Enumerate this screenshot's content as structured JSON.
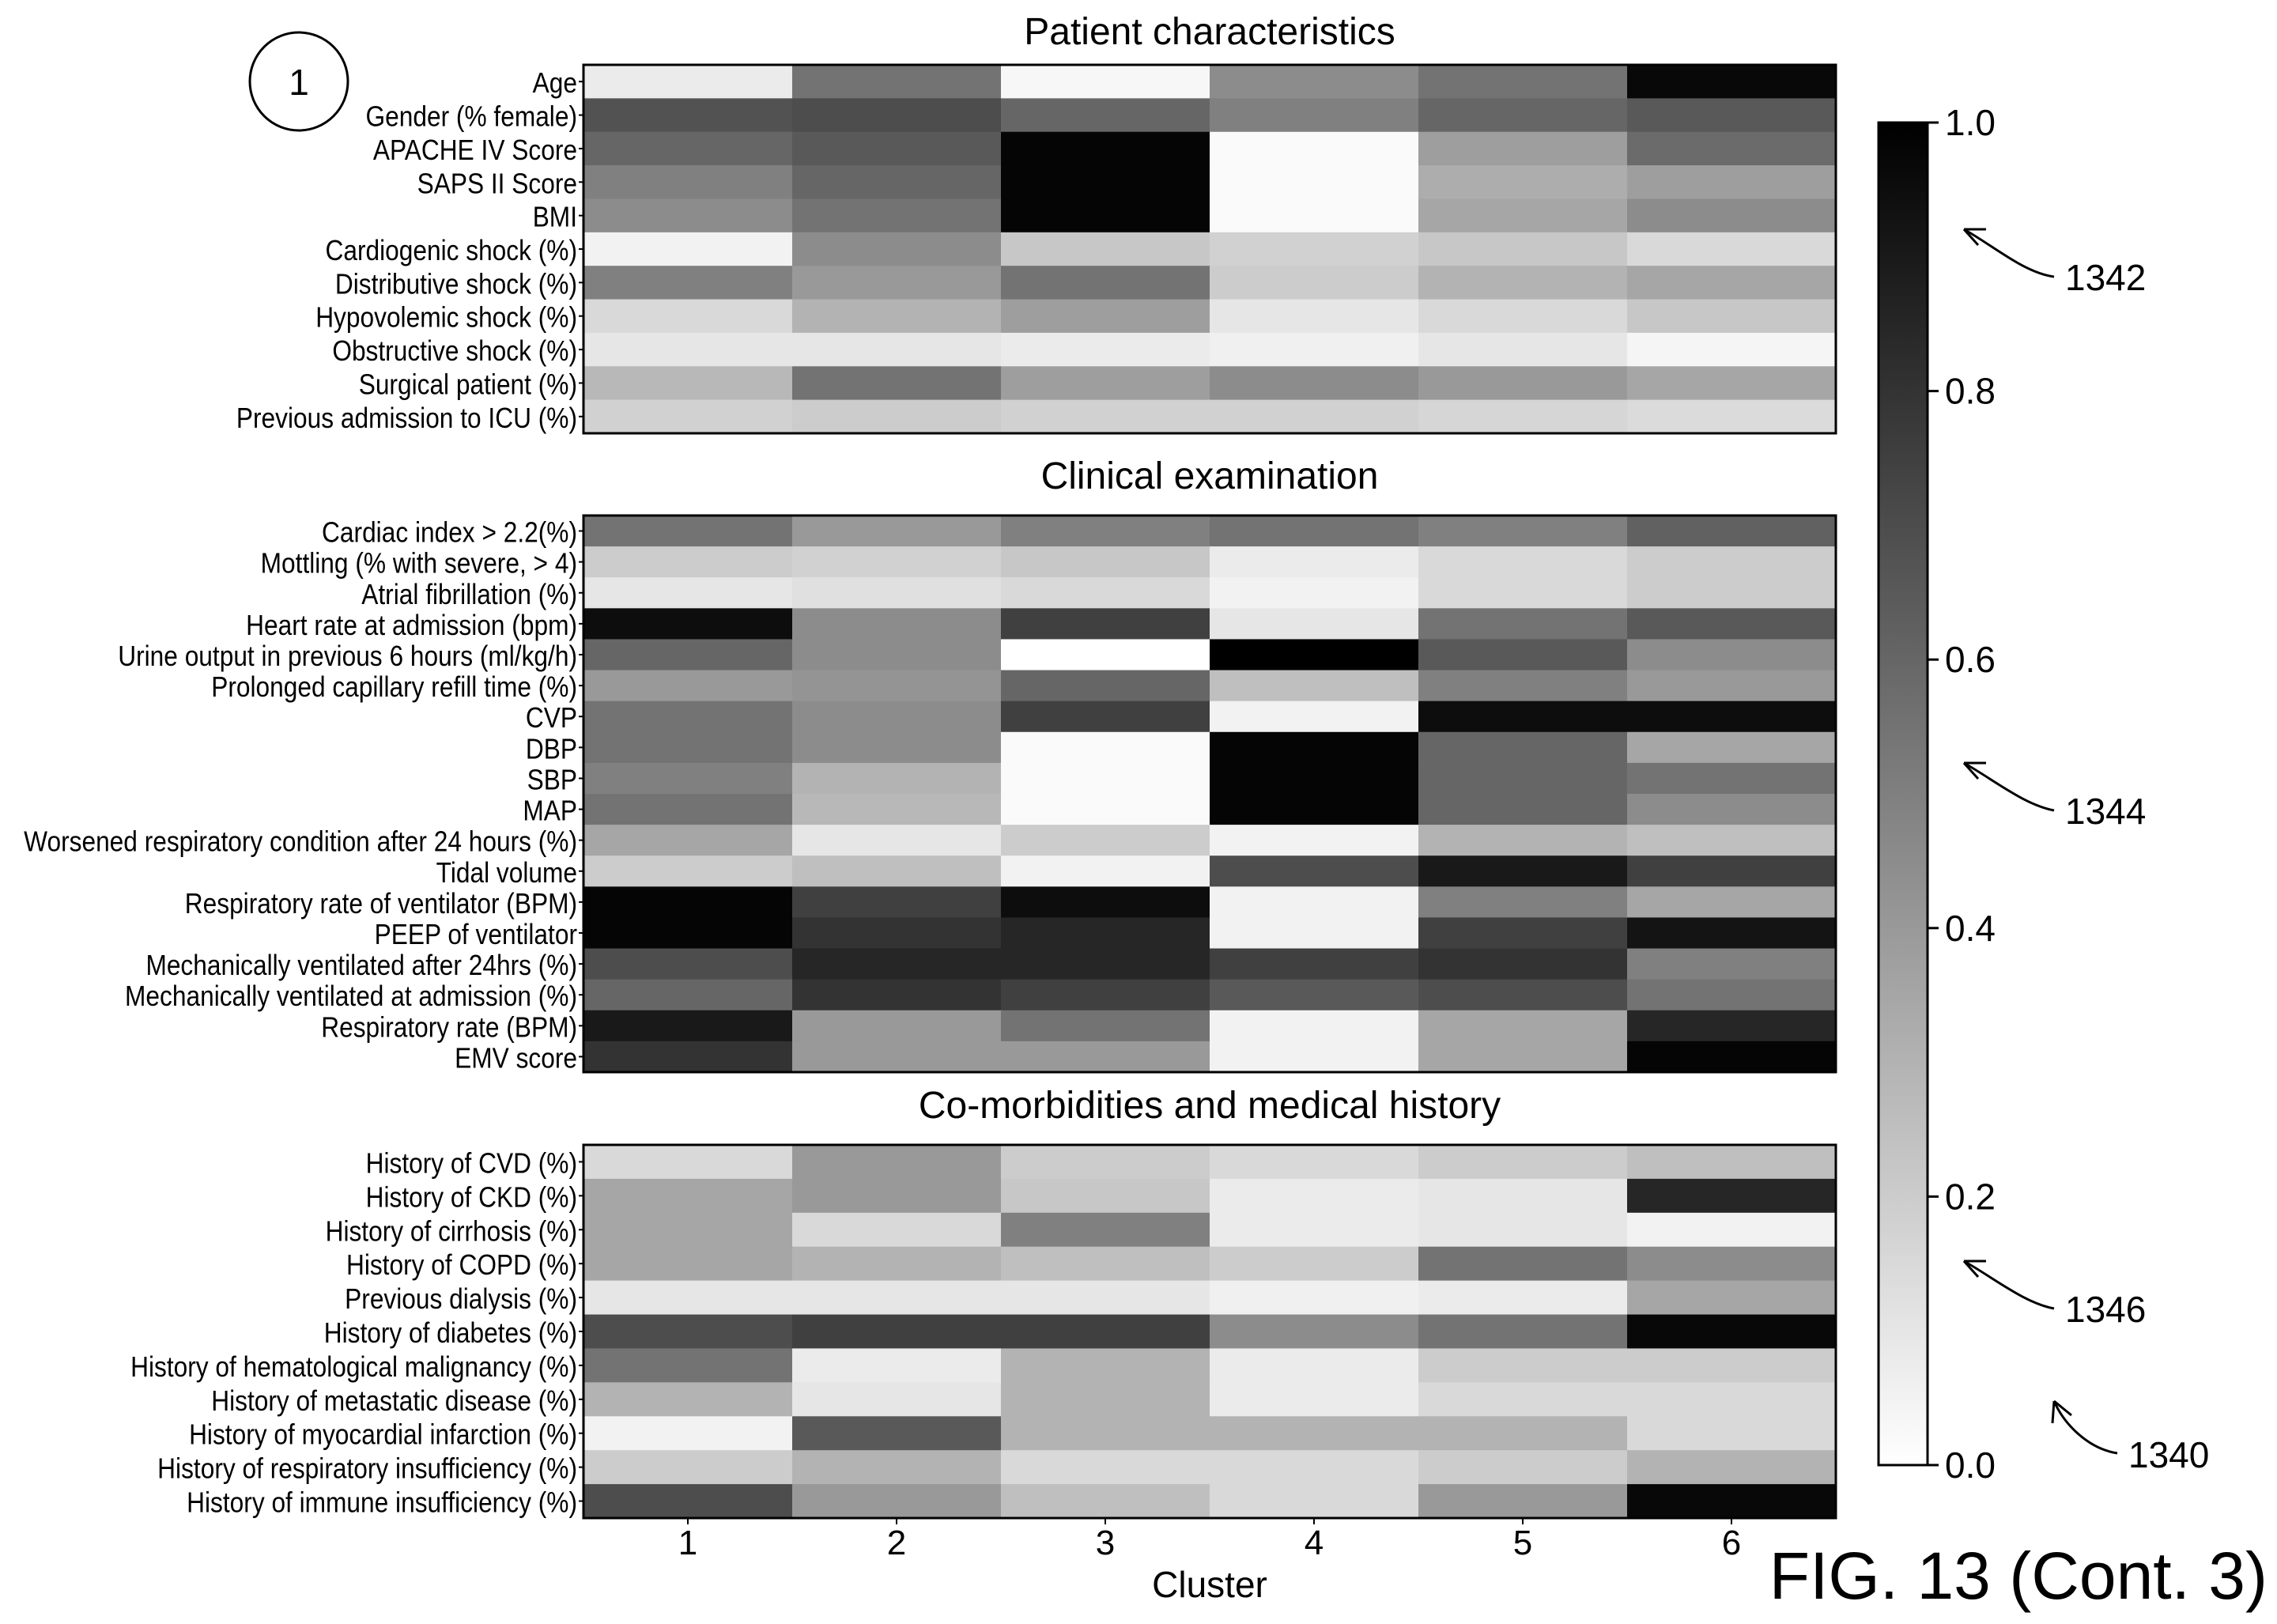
{
  "chart_data": {
    "type": "heatmap",
    "xlabel": "Cluster",
    "categories": [
      "1",
      "2",
      "3",
      "4",
      "5",
      "6"
    ],
    "colorbar": {
      "range": [
        0.0,
        1.0
      ],
      "ticks": [
        "0.0",
        "0.2",
        "0.4",
        "0.6",
        "0.8",
        "1.0"
      ],
      "colormap": [
        "#ffffff",
        "#000000"
      ]
    },
    "panels": [
      {
        "title": "Patient characteristics",
        "rows": [
          {
            "label": "Age",
            "values": [
              0.08,
              0.55,
              0.03,
              0.45,
              0.55,
              0.97
            ]
          },
          {
            "label": "Gender (% female)",
            "values": [
              0.68,
              0.7,
              0.6,
              0.5,
              0.6,
              0.65
            ]
          },
          {
            "label": "APACHE IV Score",
            "values": [
              0.6,
              0.65,
              0.98,
              0.02,
              0.38,
              0.58
            ]
          },
          {
            "label": "SAPS II Score",
            "values": [
              0.5,
              0.6,
              0.98,
              0.02,
              0.32,
              0.38
            ]
          },
          {
            "label": "BMI",
            "values": [
              0.45,
              0.55,
              0.98,
              0.02,
              0.35,
              0.45
            ]
          },
          {
            "label": "Cardiogenic shock (%)",
            "values": [
              0.05,
              0.45,
              0.22,
              0.18,
              0.22,
              0.15
            ]
          },
          {
            "label": "Distributive shock (%)",
            "values": [
              0.5,
              0.4,
              0.55,
              0.2,
              0.3,
              0.35
            ]
          },
          {
            "label": "Hypovolemic shock (%)",
            "values": [
              0.15,
              0.3,
              0.38,
              0.1,
              0.15,
              0.22
            ]
          },
          {
            "label": "Obstructive shock (%)",
            "values": [
              0.1,
              0.1,
              0.08,
              0.06,
              0.1,
              0.04
            ]
          },
          {
            "label": "Surgical patient (%)",
            "values": [
              0.28,
              0.55,
              0.38,
              0.45,
              0.4,
              0.35
            ]
          },
          {
            "label": "Previous admission to ICU (%)",
            "values": [
              0.18,
              0.2,
              0.18,
              0.18,
              0.16,
              0.14
            ]
          }
        ]
      },
      {
        "title": "Clinical examination",
        "rows": [
          {
            "label": "Cardiac index > 2.2(%)",
            "values": [
              0.55,
              0.4,
              0.5,
              0.55,
              0.5,
              0.62
            ]
          },
          {
            "label": "Mottling (% with severe, > 4)",
            "values": [
              0.2,
              0.18,
              0.22,
              0.08,
              0.15,
              0.2
            ]
          },
          {
            "label": "Atrial fibrillation (%)",
            "values": [
              0.1,
              0.12,
              0.15,
              0.05,
              0.15,
              0.2
            ]
          },
          {
            "label": "Heart rate at admission (bpm)",
            "values": [
              0.95,
              0.45,
              0.75,
              0.1,
              0.55,
              0.65
            ]
          },
          {
            "label": "Urine output in previous 6 hours (ml/kg/h)",
            "values": [
              0.6,
              0.45,
              0.0,
              1.0,
              0.65,
              0.45
            ]
          },
          {
            "label": "Prolonged capillary refill time (%)",
            "values": [
              0.4,
              0.42,
              0.6,
              0.25,
              0.5,
              0.4
            ]
          },
          {
            "label": "CVP",
            "values": [
              0.55,
              0.45,
              0.75,
              0.05,
              0.95,
              0.95
            ]
          },
          {
            "label": "DBP",
            "values": [
              0.55,
              0.45,
              0.02,
              0.98,
              0.6,
              0.35
            ]
          },
          {
            "label": "SBP",
            "values": [
              0.5,
              0.3,
              0.02,
              0.98,
              0.6,
              0.55
            ]
          },
          {
            "label": "MAP",
            "values": [
              0.55,
              0.28,
              0.02,
              0.98,
              0.6,
              0.45
            ]
          },
          {
            "label": "Worsened respiratory condition after 24 hours (%)",
            "values": [
              0.35,
              0.1,
              0.2,
              0.05,
              0.3,
              0.25
            ]
          },
          {
            "label": "Tidal volume",
            "values": [
              0.2,
              0.25,
              0.05,
              0.7,
              0.9,
              0.75
            ]
          },
          {
            "label": "Respiratory rate of ventilator (BPM)",
            "values": [
              0.98,
              0.75,
              0.95,
              0.05,
              0.5,
              0.35
            ]
          },
          {
            "label": "PEEP of ventilator",
            "values": [
              0.98,
              0.8,
              0.85,
              0.05,
              0.75,
              0.92
            ]
          },
          {
            "label": "Mechanically ventilated after 24hrs (%)",
            "values": [
              0.7,
              0.85,
              0.85,
              0.75,
              0.8,
              0.5
            ]
          },
          {
            "label": "Mechanically ventilated at admission (%)",
            "values": [
              0.6,
              0.8,
              0.75,
              0.65,
              0.7,
              0.55
            ]
          },
          {
            "label": "Respiratory rate (BPM)",
            "values": [
              0.9,
              0.4,
              0.55,
              0.05,
              0.35,
              0.85
            ]
          },
          {
            "label": "EMV score",
            "values": [
              0.8,
              0.4,
              0.4,
              0.05,
              0.35,
              0.98
            ]
          }
        ]
      },
      {
        "title": "Co-morbidities and medical history",
        "rows": [
          {
            "label": "History of CVD (%)",
            "values": [
              0.15,
              0.4,
              0.2,
              0.15,
              0.2,
              0.25
            ]
          },
          {
            "label": "History of CKD (%)",
            "values": [
              0.35,
              0.4,
              0.22,
              0.08,
              0.1,
              0.85
            ]
          },
          {
            "label": "History of cirrhosis (%)",
            "values": [
              0.35,
              0.15,
              0.5,
              0.08,
              0.1,
              0.05
            ]
          },
          {
            "label": "History of COPD (%)",
            "values": [
              0.35,
              0.3,
              0.25,
              0.2,
              0.55,
              0.45
            ]
          },
          {
            "label": "Previous dialysis (%)",
            "values": [
              0.1,
              0.1,
              0.1,
              0.06,
              0.08,
              0.35
            ]
          },
          {
            "label": "History of diabetes (%)",
            "values": [
              0.7,
              0.75,
              0.75,
              0.45,
              0.55,
              0.97
            ]
          },
          {
            "label": "History of hematological malignancy (%)",
            "values": [
              0.55,
              0.08,
              0.3,
              0.08,
              0.2,
              0.2
            ]
          },
          {
            "label": "History of metastatic disease (%)",
            "values": [
              0.3,
              0.1,
              0.3,
              0.08,
              0.15,
              0.15
            ]
          },
          {
            "label": "History of myocardial infarction (%)",
            "values": [
              0.05,
              0.65,
              0.3,
              0.3,
              0.3,
              0.15
            ]
          },
          {
            "label": "History of respiratory insufficiency (%)",
            "values": [
              0.2,
              0.3,
              0.15,
              0.15,
              0.2,
              0.3
            ]
          },
          {
            "label": "History of immune insufficiency (%)",
            "values": [
              0.7,
              0.4,
              0.25,
              0.15,
              0.4,
              0.97
            ]
          }
        ]
      }
    ]
  },
  "annotations": {
    "circle_label": "1",
    "figure_label": "FIG. 13 (Cont. 3)",
    "refs": [
      "1342",
      "1344",
      "1346",
      "1340"
    ]
  }
}
